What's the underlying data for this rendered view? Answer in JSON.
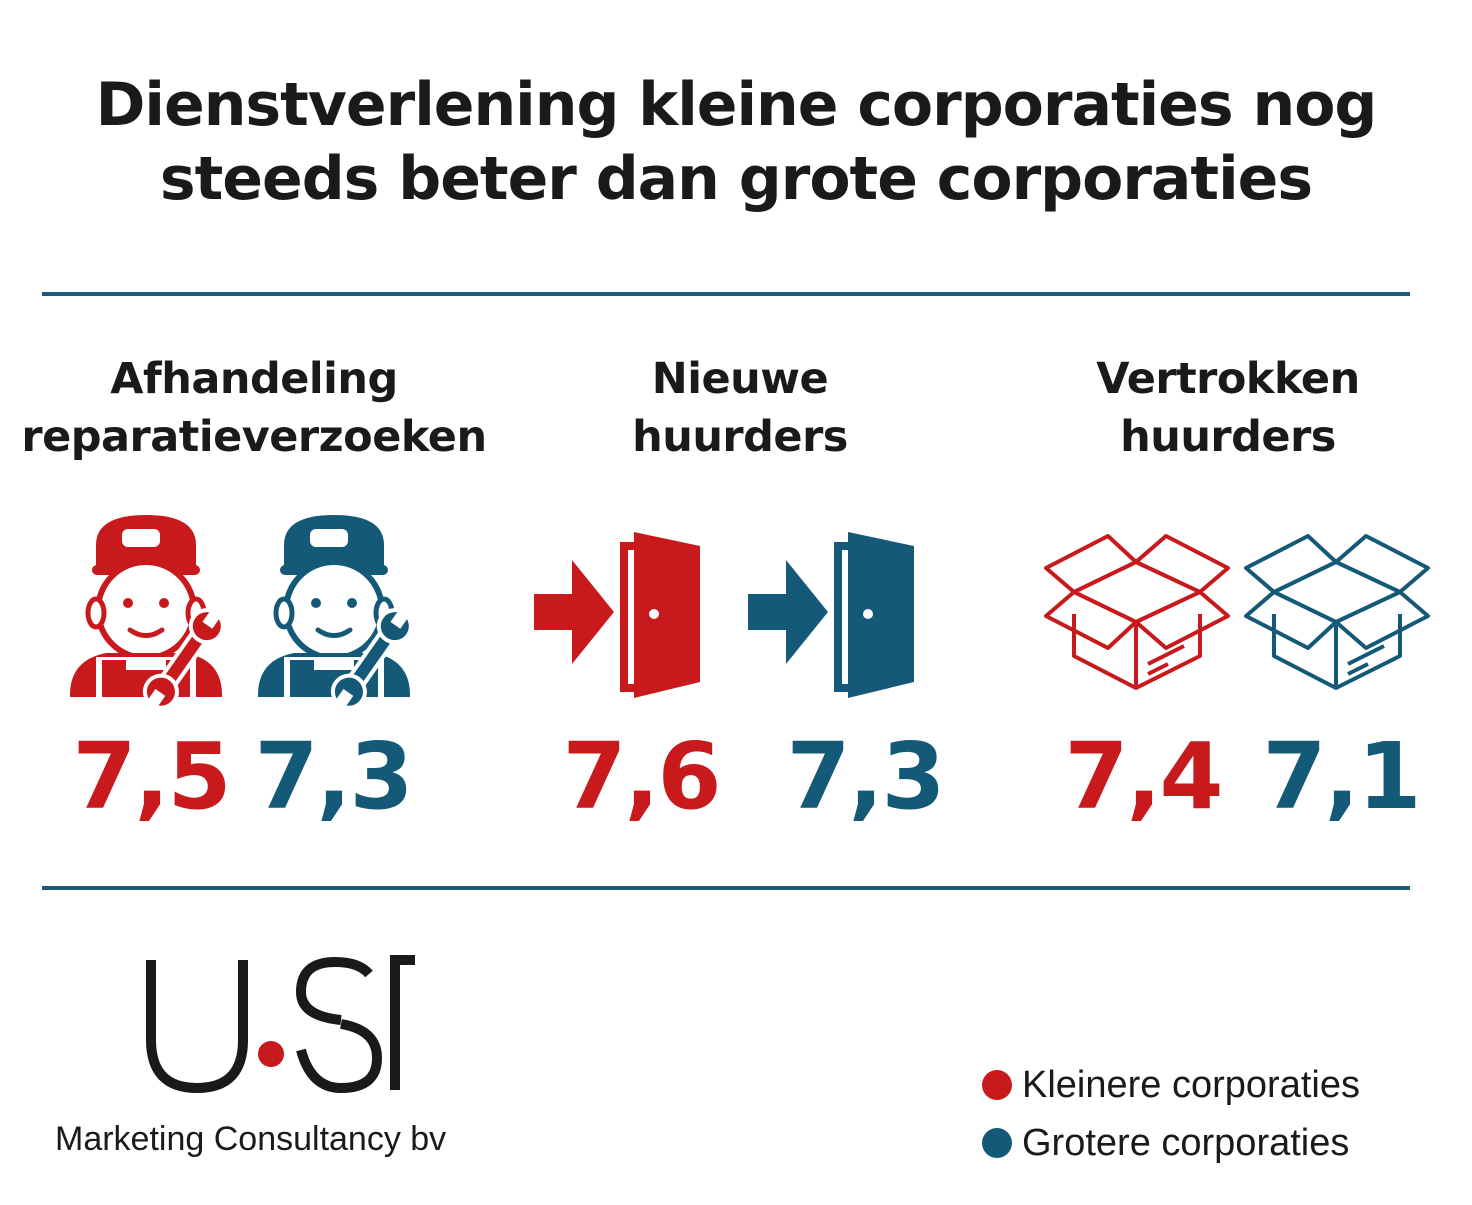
{
  "title": {
    "line1": "Dienstverlening kleine corporaties nog",
    "line2": "steeds beter dan grote corporaties"
  },
  "colors": {
    "kleinere": "#c8191c",
    "grotere": "#145a78",
    "rule": "#1d5a78"
  },
  "chart_data": {
    "type": "table",
    "categories": [
      "Afhandeling reparatieverzoeken",
      "Nieuwe huurders",
      "Vertrokken huurders"
    ],
    "series": [
      {
        "name": "Kleinere corporaties",
        "values": [
          7.5,
          7.6,
          7.4
        ]
      },
      {
        "name": "Grotere corporaties",
        "values": [
          7.3,
          7.3,
          7.1
        ]
      }
    ]
  },
  "metrics": [
    {
      "line1": "Afhandeling",
      "line2": "reparatieverzoeken",
      "icon": "mechanic-icon",
      "small": "7,5",
      "large": "7,3"
    },
    {
      "line1": "Nieuwe",
      "line2": "huurders",
      "icon": "door-enter-icon",
      "small": "7,6",
      "large": "7,3"
    },
    {
      "line1": "Vertrokken",
      "line2": "huurders",
      "icon": "open-box-icon",
      "small": "7,4",
      "large": "7,1"
    }
  ],
  "logo": {
    "text": "USP",
    "subtitle": "Marketing Consultancy bv"
  },
  "legend": [
    {
      "label": "Kleinere corporaties",
      "color": "#c8191c"
    },
    {
      "label": "Grotere corporaties",
      "color": "#145a78"
    }
  ]
}
